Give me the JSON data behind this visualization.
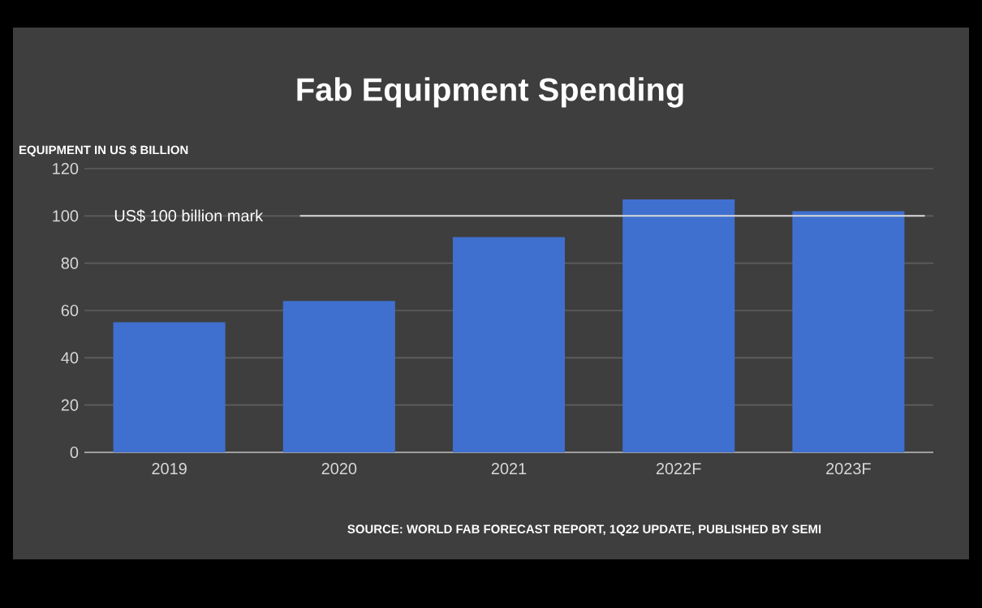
{
  "chart_data": {
    "type": "bar",
    "title": "Fab Equipment Spending",
    "ylabel": "EQUIPMENT IN US $ BILLION",
    "categories": [
      "2019",
      "2020",
      "2021",
      "2022F",
      "2023F"
    ],
    "values": [
      55,
      64,
      91,
      107,
      102
    ],
    "color": "#3f70cf",
    "ylim": [
      0,
      120
    ],
    "yticks": [
      0,
      20,
      40,
      60,
      80,
      100,
      120
    ],
    "grid": "y",
    "ref_lines": [
      {
        "axis": "y",
        "value": 100,
        "label": "US$ 100 billion mark",
        "color": "#d9d9d9"
      }
    ],
    "annotations": [
      "SOURCE: WORLD FAB FORECAST REPORT, 1Q22 UPDATE, PUBLISHED BY SEMI"
    ]
  }
}
